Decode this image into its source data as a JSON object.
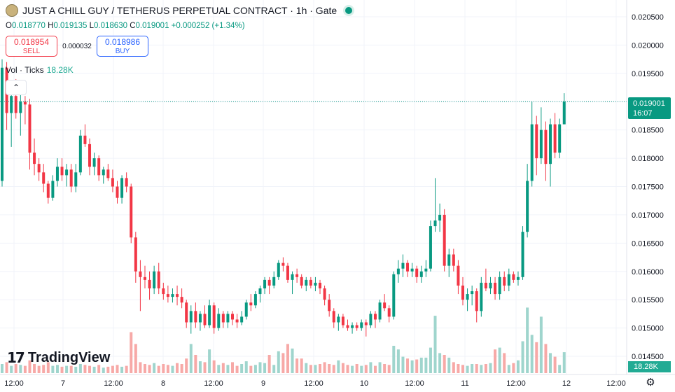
{
  "header": {
    "title": "JUST A CHILL GUY / TETHERUS PERPETUAL CONTRACT · 1h · Gate",
    "ohlc": {
      "o_label": "O",
      "o": "0.018770",
      "h_label": "H",
      "h": "0.019135",
      "l_label": "L",
      "l": "0.018630",
      "c_label": "C",
      "c": "0.019001",
      "change": "+0.000252 (+1.34%)"
    }
  },
  "trade": {
    "sell_price": "0.018954",
    "sell_label": "SELL",
    "spread": "0.000032",
    "buy_price": "0.018986",
    "buy_label": "BUY"
  },
  "volume_legend": {
    "label": "Vol · Ticks",
    "value": "18.28K"
  },
  "collapse_icon": "chevron-up-icon",
  "brand": "TradingView",
  "last_price": {
    "price": "0.019001",
    "countdown": "16:07",
    "color": "#089981"
  },
  "volume_last": "18.28K",
  "colors": {
    "up": "#089981",
    "down": "#f23645",
    "up_vol": "#9fd5cd",
    "down_vol": "#f7a9a7",
    "grid": "#f0f3fa"
  },
  "chart_data": {
    "type": "candlestick",
    "timeframe": "1h",
    "ylim": [
      0.0145,
      0.0207
    ],
    "y_ticks": [
      "0.020500",
      "0.020000",
      "0.019500",
      "0.019000",
      "0.018500",
      "0.018000",
      "0.017500",
      "0.017000",
      "0.016500",
      "0.016000",
      "0.015500",
      "0.015000",
      "0.014500"
    ],
    "x_ticks": [
      "12:00",
      "7",
      "12:00",
      "8",
      "12:00",
      "9",
      "12:00",
      "10",
      "12:00",
      "11",
      "12:00",
      "12",
      "12:00"
    ],
    "bar_spacing_hours": 1,
    "candles_ohlc": [
      [
        0.0176,
        0.01975,
        0.0175,
        0.0196
      ],
      [
        0.0196,
        0.0197,
        0.0185,
        0.0188
      ],
      [
        0.0188,
        0.0193,
        0.0182,
        0.0191
      ],
      [
        0.0191,
        0.0194,
        0.0187,
        0.0188
      ],
      [
        0.0188,
        0.0192,
        0.0184,
        0.019
      ],
      [
        0.019,
        0.0191,
        0.0186,
        0.01895
      ],
      [
        0.01895,
        0.01905,
        0.0178,
        0.0181
      ],
      [
        0.0181,
        0.01835,
        0.0177,
        0.0179
      ],
      [
        0.0179,
        0.018,
        0.0176,
        0.01775
      ],
      [
        0.01775,
        0.0179,
        0.0174,
        0.01755
      ],
      [
        0.01755,
        0.0176,
        0.0172,
        0.0173
      ],
      [
        0.0173,
        0.0177,
        0.01725,
        0.0176
      ],
      [
        0.0176,
        0.018,
        0.0175,
        0.01785
      ],
      [
        0.01785,
        0.018,
        0.0176,
        0.0177
      ],
      [
        0.0177,
        0.0179,
        0.0175,
        0.0178
      ],
      [
        0.0178,
        0.0179,
        0.0174,
        0.0175
      ],
      [
        0.0175,
        0.0179,
        0.0174,
        0.01775
      ],
      [
        0.01775,
        0.0185,
        0.0177,
        0.0184
      ],
      [
        0.0184,
        0.0186,
        0.0182,
        0.01825
      ],
      [
        0.01825,
        0.01835,
        0.0177,
        0.01785
      ],
      [
        0.01785,
        0.0181,
        0.0177,
        0.018
      ],
      [
        0.018,
        0.01805,
        0.0176,
        0.0177
      ],
      [
        0.0177,
        0.01785,
        0.01755,
        0.0178
      ],
      [
        0.0178,
        0.0179,
        0.0176,
        0.01765
      ],
      [
        0.01765,
        0.0178,
        0.0174,
        0.0175
      ],
      [
        0.0175,
        0.0176,
        0.0172,
        0.0173
      ],
      [
        0.0173,
        0.0177,
        0.0172,
        0.01765
      ],
      [
        0.01765,
        0.01775,
        0.0174,
        0.0175
      ],
      [
        0.0175,
        0.01755,
        0.0165,
        0.0166
      ],
      [
        0.0166,
        0.0167,
        0.0158,
        0.016
      ],
      [
        0.016,
        0.0162,
        0.0153,
        0.0159
      ],
      [
        0.0159,
        0.0161,
        0.0157,
        0.01585
      ],
      [
        0.01585,
        0.016,
        0.0155,
        0.0157
      ],
      [
        0.0157,
        0.0161,
        0.0156,
        0.016
      ],
      [
        0.016,
        0.01615,
        0.0156,
        0.0157
      ],
      [
        0.0157,
        0.0158,
        0.0155,
        0.0156
      ],
      [
        0.0156,
        0.01575,
        0.01545,
        0.01555
      ],
      [
        0.01555,
        0.0157,
        0.01545,
        0.0156
      ],
      [
        0.0156,
        0.01575,
        0.0154,
        0.01555
      ],
      [
        0.01555,
        0.0157,
        0.01535,
        0.01545
      ],
      [
        0.01545,
        0.0155,
        0.015,
        0.0151
      ],
      [
        0.0151,
        0.0154,
        0.0149,
        0.0153
      ],
      [
        0.0153,
        0.01545,
        0.015,
        0.0151
      ],
      [
        0.0151,
        0.0153,
        0.01495,
        0.01525
      ],
      [
        0.01525,
        0.0154,
        0.015,
        0.01505
      ],
      [
        0.01505,
        0.0155,
        0.015,
        0.0154
      ],
      [
        0.0154,
        0.01545,
        0.0149,
        0.015
      ],
      [
        0.015,
        0.01535,
        0.01495,
        0.01525
      ],
      [
        0.01525,
        0.0153,
        0.015,
        0.0151
      ],
      [
        0.0151,
        0.0153,
        0.015,
        0.01525
      ],
      [
        0.01525,
        0.0153,
        0.01505,
        0.01515
      ],
      [
        0.01515,
        0.01525,
        0.015,
        0.0151
      ],
      [
        0.0151,
        0.0153,
        0.01505,
        0.0152
      ],
      [
        0.0152,
        0.0155,
        0.01515,
        0.01545
      ],
      [
        0.01545,
        0.0156,
        0.0153,
        0.0154
      ],
      [
        0.0154,
        0.01565,
        0.01535,
        0.0156
      ],
      [
        0.0156,
        0.01575,
        0.01545,
        0.0157
      ],
      [
        0.0157,
        0.0159,
        0.0156,
        0.01585
      ],
      [
        0.01585,
        0.0159,
        0.0156,
        0.01575
      ],
      [
        0.01575,
        0.016,
        0.0157,
        0.0159
      ],
      [
        0.0159,
        0.0162,
        0.01585,
        0.01615
      ],
      [
        0.01615,
        0.01625,
        0.016,
        0.0161
      ],
      [
        0.0161,
        0.01615,
        0.0158,
        0.01585
      ],
      [
        0.01585,
        0.016,
        0.0156,
        0.01595
      ],
      [
        0.01595,
        0.01605,
        0.0158,
        0.0159
      ],
      [
        0.0159,
        0.01595,
        0.0157,
        0.01575
      ],
      [
        0.01575,
        0.0159,
        0.01565,
        0.01585
      ],
      [
        0.01585,
        0.0159,
        0.0157,
        0.01575
      ],
      [
        0.01575,
        0.0159,
        0.01565,
        0.0158
      ],
      [
        0.0158,
        0.01585,
        0.0156,
        0.0157
      ],
      [
        0.0157,
        0.01575,
        0.0154,
        0.0155
      ],
      [
        0.0155,
        0.0156,
        0.0152,
        0.0153
      ],
      [
        0.0153,
        0.01535,
        0.015,
        0.0151
      ],
      [
        0.0151,
        0.01525,
        0.01495,
        0.0152
      ],
      [
        0.0152,
        0.01525,
        0.015,
        0.01505
      ],
      [
        0.01505,
        0.01515,
        0.01495,
        0.015
      ],
      [
        0.015,
        0.0151,
        0.0149,
        0.01505
      ],
      [
        0.01505,
        0.0151,
        0.01495,
        0.015
      ],
      [
        0.015,
        0.01515,
        0.01495,
        0.0151
      ],
      [
        0.0151,
        0.01515,
        0.01485,
        0.01505
      ],
      [
        0.01505,
        0.0153,
        0.015,
        0.01525
      ],
      [
        0.01525,
        0.0153,
        0.015,
        0.01515
      ],
      [
        0.01515,
        0.0155,
        0.0151,
        0.01545
      ],
      [
        0.01545,
        0.0156,
        0.0153,
        0.01535
      ],
      [
        0.01535,
        0.0154,
        0.0151,
        0.0152
      ],
      [
        0.0152,
        0.016,
        0.01515,
        0.01595
      ],
      [
        0.01595,
        0.0162,
        0.0158,
        0.01605
      ],
      [
        0.01605,
        0.0163,
        0.0159,
        0.01615
      ],
      [
        0.01615,
        0.0162,
        0.0159,
        0.016
      ],
      [
        0.016,
        0.01615,
        0.0159,
        0.01605
      ],
      [
        0.01605,
        0.0161,
        0.0158,
        0.0159
      ],
      [
        0.0159,
        0.0161,
        0.0158,
        0.016
      ],
      [
        0.016,
        0.0162,
        0.0159,
        0.01605
      ],
      [
        0.01605,
        0.0169,
        0.016,
        0.0168
      ],
      [
        0.0168,
        0.01765,
        0.0167,
        0.0169
      ],
      [
        0.0169,
        0.0172,
        0.0167,
        0.017
      ],
      [
        0.017,
        0.0171,
        0.016,
        0.0161
      ],
      [
        0.0161,
        0.0164,
        0.0159,
        0.0163
      ],
      [
        0.0163,
        0.0164,
        0.016,
        0.0161
      ],
      [
        0.0161,
        0.0162,
        0.0156,
        0.01575
      ],
      [
        0.01575,
        0.0159,
        0.0154,
        0.0155
      ],
      [
        0.0155,
        0.0157,
        0.0153,
        0.0156
      ],
      [
        0.0156,
        0.01575,
        0.0154,
        0.01565
      ],
      [
        0.01565,
        0.0157,
        0.0151,
        0.0153
      ],
      [
        0.0153,
        0.0159,
        0.0152,
        0.0158
      ],
      [
        0.0158,
        0.01605,
        0.01565,
        0.0157
      ],
      [
        0.0157,
        0.0159,
        0.0156,
        0.0158
      ],
      [
        0.0158,
        0.0159,
        0.0155,
        0.0156
      ],
      [
        0.0156,
        0.016,
        0.0155,
        0.0159
      ],
      [
        0.0159,
        0.016,
        0.01565,
        0.01575
      ],
      [
        0.01575,
        0.01605,
        0.01565,
        0.01595
      ],
      [
        0.01595,
        0.016,
        0.0158,
        0.01585
      ],
      [
        0.01585,
        0.016,
        0.01575,
        0.0159
      ],
      [
        0.0159,
        0.0168,
        0.01585,
        0.0167
      ],
      [
        0.0167,
        0.0179,
        0.0166,
        0.0176
      ],
      [
        0.0176,
        0.019,
        0.0175,
        0.0186
      ],
      [
        0.0186,
        0.01875,
        0.0177,
        0.018
      ],
      [
        0.018,
        0.0189,
        0.0179,
        0.0185
      ],
      [
        0.0185,
        0.01865,
        0.0176,
        0.0179
      ],
      [
        0.0179,
        0.0187,
        0.0175,
        0.0186
      ],
      [
        0.0186,
        0.0188,
        0.018,
        0.0181
      ],
      [
        0.0181,
        0.0187,
        0.018,
        0.0186
      ],
      [
        0.0186,
        0.01915,
        0.01863,
        0.019
      ]
    ],
    "volume_relative": [
      0.1,
      0.12,
      0.08,
      0.1,
      0.09,
      0.08,
      0.14,
      0.1,
      0.08,
      0.09,
      0.12,
      0.08,
      0.09,
      0.07,
      0.08,
      0.08,
      0.07,
      0.1,
      0.09,
      0.08,
      0.07,
      0.09,
      0.06,
      0.07,
      0.08,
      0.09,
      0.07,
      0.08,
      0.45,
      0.32,
      0.12,
      0.1,
      0.09,
      0.11,
      0.08,
      0.1,
      0.09,
      0.08,
      0.11,
      0.1,
      0.16,
      0.32,
      0.2,
      0.13,
      0.12,
      0.26,
      0.14,
      0.09,
      0.11,
      0.09,
      0.12,
      0.08,
      0.1,
      0.13,
      0.08,
      0.09,
      0.12,
      0.11,
      0.2,
      0.09,
      0.24,
      0.22,
      0.32,
      0.27,
      0.16,
      0.16,
      0.11,
      0.09,
      0.09,
      0.1,
      0.12,
      0.1,
      0.09,
      0.14,
      0.11,
      0.09,
      0.08,
      0.1,
      0.08,
      0.09,
      0.12,
      0.08,
      0.12,
      0.1,
      0.09,
      0.3,
      0.26,
      0.18,
      0.16,
      0.14,
      0.15,
      0.17,
      0.17,
      0.28,
      0.63,
      0.22,
      0.2,
      0.17,
      0.12,
      0.1,
      0.09,
      0.08,
      0.1,
      0.1,
      0.09,
      0.1,
      0.11,
      0.26,
      0.28,
      0.22,
      0.09,
      0.11,
      0.14,
      0.35,
      0.72,
      0.42,
      0.34,
      0.62,
      0.32,
      0.22,
      0.18,
      0.09,
      0.23,
      0.13
    ]
  }
}
